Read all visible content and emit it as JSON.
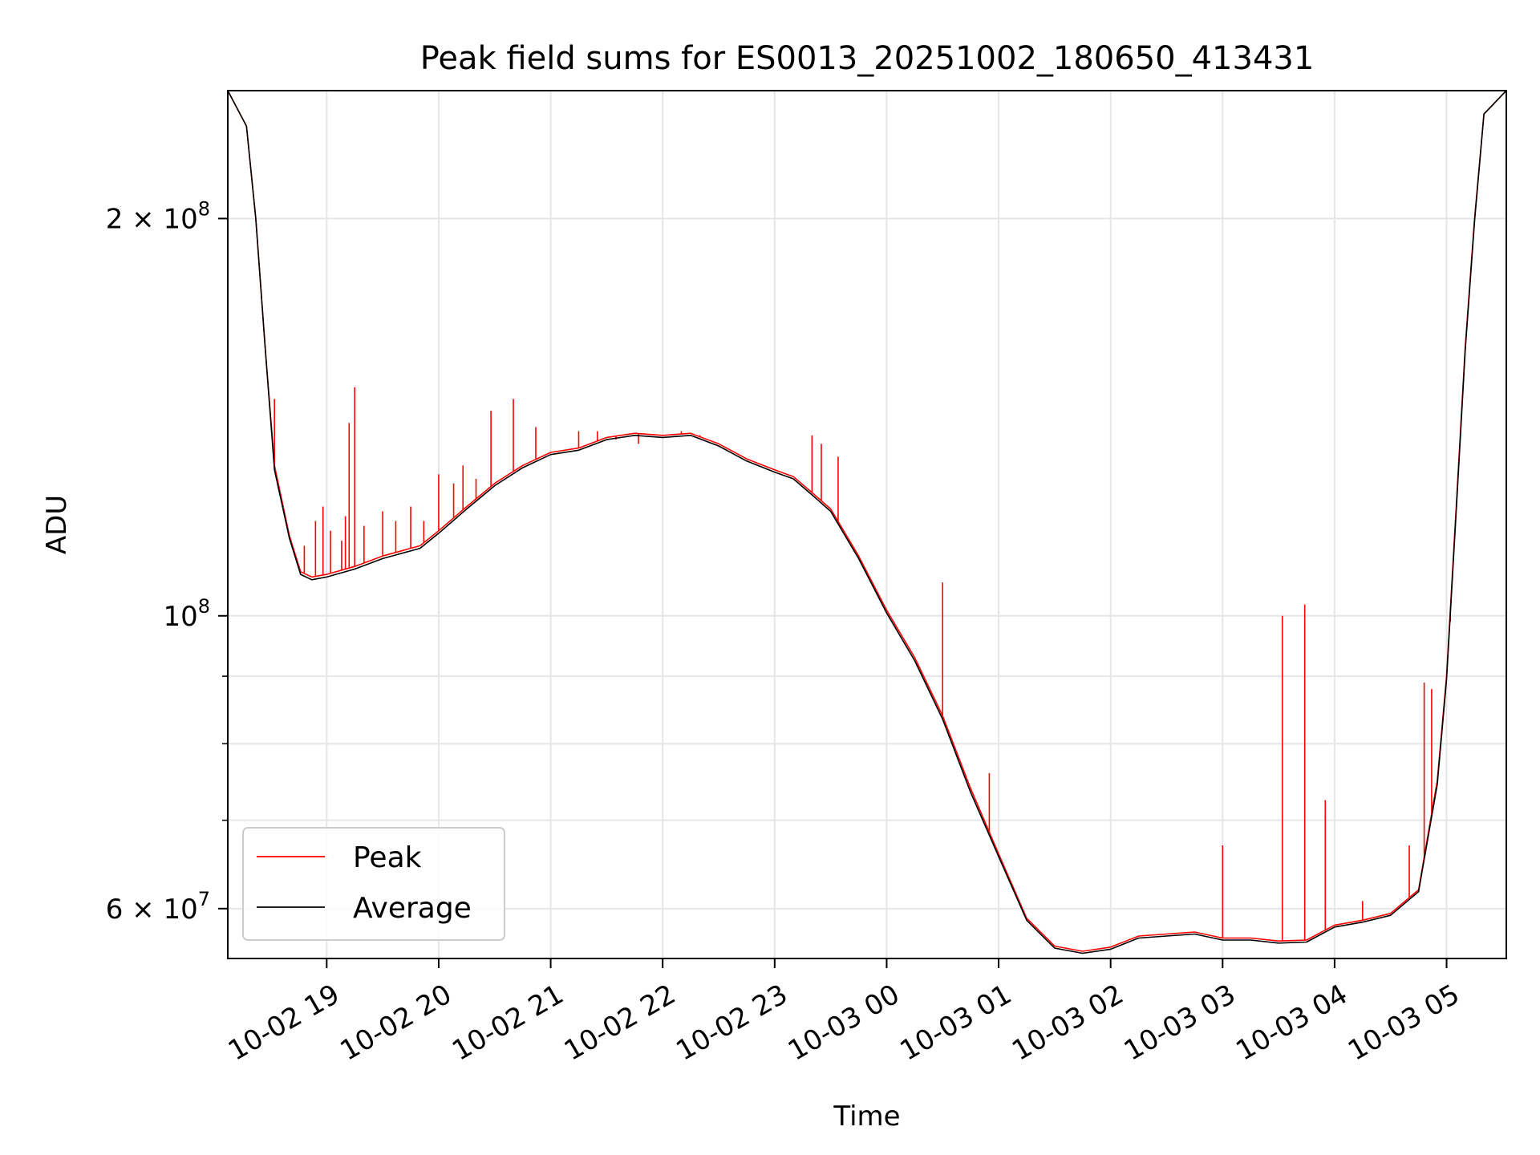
{
  "chart_data": {
    "type": "line",
    "title": "Peak field sums for ES0013_20251002_180650_413431",
    "xlabel": "Time",
    "ylabel": "ADU",
    "y_scale": "log",
    "xlim": [
      "2025-10-02 18:07",
      "2025-10-03 05:32"
    ],
    "ylim": [
      55000000,
      250000000
    ],
    "grid": true,
    "legend_position": "lower-left",
    "x_ticks": [
      {
        "value": "2025-10-02 19:00",
        "label": "10-02 19"
      },
      {
        "value": "2025-10-02 20:00",
        "label": "10-02 20"
      },
      {
        "value": "2025-10-02 21:00",
        "label": "10-02 21"
      },
      {
        "value": "2025-10-02 22:00",
        "label": "10-02 22"
      },
      {
        "value": "2025-10-02 23:00",
        "label": "10-02 23"
      },
      {
        "value": "2025-10-03 00:00",
        "label": "10-03 00"
      },
      {
        "value": "2025-10-03 01:00",
        "label": "10-03 01"
      },
      {
        "value": "2025-10-03 02:00",
        "label": "10-03 02"
      },
      {
        "value": "2025-10-03 03:00",
        "label": "10-03 03"
      },
      {
        "value": "2025-10-03 04:00",
        "label": "10-03 04"
      },
      {
        "value": "2025-10-03 05:00",
        "label": "10-03 05"
      }
    ],
    "y_ticks_major": [
      {
        "value": 60000000,
        "mantissa": "6",
        "exponent": "7"
      },
      {
        "value": 100000000,
        "mantissa": "",
        "exponent": "8"
      },
      {
        "value": 200000000,
        "mantissa": "2",
        "exponent": "8"
      }
    ],
    "y_ticks_minor": [
      70000000,
      80000000,
      90000000
    ],
    "series": [
      {
        "name": "Peak",
        "color": "#ff0000",
        "points": [
          [
            "2025-10-02 18:07",
            250000000
          ],
          [
            "2025-10-02 18:17",
            235000000
          ],
          [
            "2025-10-02 18:22",
            200000000
          ],
          [
            "2025-10-02 18:27",
            160000000
          ],
          [
            "2025-10-02 18:32",
            130000000
          ],
          [
            "2025-10-02 18:40",
            115000000
          ],
          [
            "2025-10-02 18:46",
            108000000
          ],
          [
            "2025-10-02 18:52",
            107000000
          ],
          [
            "2025-10-02 19:00",
            107500000
          ],
          [
            "2025-10-02 19:15",
            109000000
          ],
          [
            "2025-10-02 19:30",
            111000000
          ],
          [
            "2025-10-02 19:40",
            112000000
          ],
          [
            "2025-10-02 19:50",
            113000000
          ],
          [
            "2025-10-02 20:00",
            116000000
          ],
          [
            "2025-10-02 20:15",
            121000000
          ],
          [
            "2025-10-02 20:30",
            126000000
          ],
          [
            "2025-10-02 20:45",
            130000000
          ],
          [
            "2025-10-02 21:00",
            133000000
          ],
          [
            "2025-10-02 21:15",
            134000000
          ],
          [
            "2025-10-02 21:30",
            136500000
          ],
          [
            "2025-10-02 21:45",
            137500000
          ],
          [
            "2025-10-02 22:00",
            137000000
          ],
          [
            "2025-10-02 22:15",
            137500000
          ],
          [
            "2025-10-02 22:30",
            135000000
          ],
          [
            "2025-10-02 22:45",
            131500000
          ],
          [
            "2025-10-02 23:00",
            129000000
          ],
          [
            "2025-10-02 23:10",
            127500000
          ],
          [
            "2025-10-02 23:20",
            124000000
          ],
          [
            "2025-10-02 23:30",
            120500000
          ],
          [
            "2025-10-02 23:45",
            111000000
          ],
          [
            "2025-10-03 00:00",
            101000000
          ],
          [
            "2025-10-03 00:15",
            93000000
          ],
          [
            "2025-10-03 00:30",
            84000000
          ],
          [
            "2025-10-03 00:45",
            74000000
          ],
          [
            "2025-10-03 01:00",
            66000000
          ],
          [
            "2025-10-03 01:15",
            59000000
          ],
          [
            "2025-10-03 01:30",
            56200000
          ],
          [
            "2025-10-03 01:45",
            55700000
          ],
          [
            "2025-10-03 02:00",
            56100000
          ],
          [
            "2025-10-03 02:15",
            57200000
          ],
          [
            "2025-10-03 02:30",
            57400000
          ],
          [
            "2025-10-03 02:45",
            57600000
          ],
          [
            "2025-10-03 03:00",
            57000000
          ],
          [
            "2025-10-03 03:15",
            57000000
          ],
          [
            "2025-10-03 03:30",
            56700000
          ],
          [
            "2025-10-03 03:45",
            56800000
          ],
          [
            "2025-10-03 04:00",
            58300000
          ],
          [
            "2025-10-03 04:15",
            58800000
          ],
          [
            "2025-10-03 04:30",
            59500000
          ],
          [
            "2025-10-03 04:45",
            62000000
          ],
          [
            "2025-10-03 04:55",
            75000000
          ],
          [
            "2025-10-03 05:00",
            90000000
          ],
          [
            "2025-10-03 05:05",
            120000000
          ],
          [
            "2025-10-03 05:10",
            160000000
          ],
          [
            "2025-10-03 05:15",
            200000000
          ],
          [
            "2025-10-03 05:20",
            240000000
          ],
          [
            "2025-10-03 05:32",
            250000000
          ]
        ],
        "spikes": [
          [
            "2025-10-02 18:32",
            146000000
          ],
          [
            "2025-10-02 18:48",
            113000000
          ],
          [
            "2025-10-02 18:54",
            118000000
          ],
          [
            "2025-10-02 18:58",
            121000000
          ],
          [
            "2025-10-02 19:02",
            116000000
          ],
          [
            "2025-10-02 19:08",
            114000000
          ],
          [
            "2025-10-02 19:10",
            119000000
          ],
          [
            "2025-10-02 19:12",
            140000000
          ],
          [
            "2025-10-02 19:15",
            149000000
          ],
          [
            "2025-10-02 19:20",
            117000000
          ],
          [
            "2025-10-02 19:30",
            120000000
          ],
          [
            "2025-10-02 19:37",
            118000000
          ],
          [
            "2025-10-02 19:45",
            121000000
          ],
          [
            "2025-10-02 19:52",
            118000000
          ],
          [
            "2025-10-02 20:00",
            128000000
          ],
          [
            "2025-10-02 20:08",
            126000000
          ],
          [
            "2025-10-02 20:13",
            130000000
          ],
          [
            "2025-10-02 20:20",
            127000000
          ],
          [
            "2025-10-02 20:28",
            143000000
          ],
          [
            "2025-10-02 20:40",
            146000000
          ],
          [
            "2025-10-02 20:52",
            139000000
          ],
          [
            "2025-10-02 21:15",
            138000000
          ],
          [
            "2025-10-02 21:25",
            138000000
          ],
          [
            "2025-10-02 21:35",
            136000000
          ],
          [
            "2025-10-02 21:47",
            135000000
          ],
          [
            "2025-10-02 22:10",
            138000000
          ],
          [
            "2025-10-02 22:20",
            137000000
          ],
          [
            "2025-10-02 23:20",
            137000000
          ],
          [
            "2025-10-02 23:25",
            135000000
          ],
          [
            "2025-10-02 23:34",
            132000000
          ],
          [
            "2025-10-03 00:30",
            106000000
          ],
          [
            "2025-10-03 00:55",
            76000000
          ],
          [
            "2025-10-03 03:00",
            67000000
          ],
          [
            "2025-10-03 03:32",
            100000000
          ],
          [
            "2025-10-03 03:44",
            102000000
          ],
          [
            "2025-10-03 03:55",
            72500000
          ],
          [
            "2025-10-03 04:15",
            60800000
          ],
          [
            "2025-10-03 04:40",
            67000000
          ],
          [
            "2025-10-03 04:48",
            89000000
          ],
          [
            "2025-10-03 04:52",
            88000000
          ],
          [
            "2025-10-03 05:02",
            99000000
          ]
        ]
      },
      {
        "name": "Average",
        "color": "#000000",
        "points": [
          [
            "2025-10-02 18:07",
            250000000
          ],
          [
            "2025-10-02 18:17",
            235000000
          ],
          [
            "2025-10-02 18:22",
            200000000
          ],
          [
            "2025-10-02 18:27",
            160000000
          ],
          [
            "2025-10-02 18:32",
            129000000
          ],
          [
            "2025-10-02 18:40",
            114500000
          ],
          [
            "2025-10-02 18:46",
            107500000
          ],
          [
            "2025-10-02 18:52",
            106500000
          ],
          [
            "2025-10-02 19:00",
            107000000
          ],
          [
            "2025-10-02 19:15",
            108500000
          ],
          [
            "2025-10-02 19:30",
            110500000
          ],
          [
            "2025-10-02 19:40",
            111500000
          ],
          [
            "2025-10-02 19:50",
            112500000
          ],
          [
            "2025-10-02 20:00",
            115500000
          ],
          [
            "2025-10-02 20:15",
            120500000
          ],
          [
            "2025-10-02 20:30",
            125500000
          ],
          [
            "2025-10-02 20:45",
            129500000
          ],
          [
            "2025-10-02 21:00",
            132500000
          ],
          [
            "2025-10-02 21:15",
            133500000
          ],
          [
            "2025-10-02 21:30",
            136000000
          ],
          [
            "2025-10-02 21:45",
            137000000
          ],
          [
            "2025-10-02 22:00",
            136500000
          ],
          [
            "2025-10-02 22:15",
            137000000
          ],
          [
            "2025-10-02 22:30",
            134500000
          ],
          [
            "2025-10-02 22:45",
            131000000
          ],
          [
            "2025-10-02 23:00",
            128500000
          ],
          [
            "2025-10-02 23:10",
            127000000
          ],
          [
            "2025-10-02 23:20",
            123500000
          ],
          [
            "2025-10-02 23:30",
            120000000
          ],
          [
            "2025-10-02 23:45",
            110500000
          ],
          [
            "2025-10-03 00:00",
            100500000
          ],
          [
            "2025-10-03 00:15",
            92500000
          ],
          [
            "2025-10-03 00:30",
            83500000
          ],
          [
            "2025-10-03 00:45",
            73500000
          ],
          [
            "2025-10-03 01:00",
            65700000
          ],
          [
            "2025-10-03 01:15",
            58800000
          ],
          [
            "2025-10-03 01:30",
            56000000
          ],
          [
            "2025-10-03 01:45",
            55500000
          ],
          [
            "2025-10-03 02:00",
            55900000
          ],
          [
            "2025-10-03 02:15",
            57000000
          ],
          [
            "2025-10-03 02:30",
            57200000
          ],
          [
            "2025-10-03 02:45",
            57400000
          ],
          [
            "2025-10-03 03:00",
            56800000
          ],
          [
            "2025-10-03 03:15",
            56800000
          ],
          [
            "2025-10-03 03:30",
            56500000
          ],
          [
            "2025-10-03 03:45",
            56600000
          ],
          [
            "2025-10-03 04:00",
            58100000
          ],
          [
            "2025-10-03 04:15",
            58600000
          ],
          [
            "2025-10-03 04:30",
            59300000
          ],
          [
            "2025-10-03 04:45",
            61800000
          ],
          [
            "2025-10-03 04:55",
            74500000
          ],
          [
            "2025-10-03 05:00",
            89500000
          ],
          [
            "2025-10-03 05:05",
            119000000
          ],
          [
            "2025-10-03 05:10",
            159000000
          ],
          [
            "2025-10-03 05:15",
            199000000
          ],
          [
            "2025-10-03 05:20",
            240000000
          ],
          [
            "2025-10-03 05:32",
            250000000
          ]
        ]
      }
    ]
  }
}
